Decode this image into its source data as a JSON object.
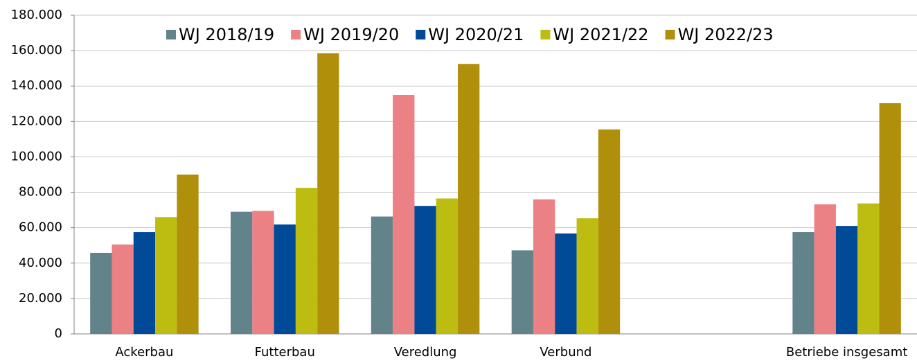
{
  "chart_data": {
    "type": "bar",
    "categories": [
      "Ackerbau",
      "Futterbau",
      "Veredlung",
      "Verbund",
      null,
      "Betriebe insgesamt"
    ],
    "series": [
      {
        "name": "WJ 2018/19",
        "color": "#62838a",
        "values": [
          45800,
          69000,
          66300,
          47200,
          null,
          57500
        ]
      },
      {
        "name": "WJ 2019/20",
        "color": "#eb8085",
        "values": [
          50500,
          69500,
          135000,
          76000,
          null,
          73200
        ]
      },
      {
        "name": "WJ 2020/21",
        "color": "#004a97",
        "values": [
          57500,
          61800,
          72300,
          56700,
          null,
          61000
        ]
      },
      {
        "name": "WJ 2021/22",
        "color": "#bcbd10",
        "values": [
          66000,
          82500,
          76500,
          65300,
          null,
          73700
        ]
      },
      {
        "name": "WJ 2022/23",
        "color": "#b08f0b",
        "values": [
          90000,
          158500,
          152500,
          115500,
          null,
          130300
        ]
      }
    ],
    "ylim": [
      0,
      180000
    ],
    "yticks": [
      {
        "value": 0,
        "label": "0"
      },
      {
        "value": 20000,
        "label": "20.000"
      },
      {
        "value": 40000,
        "label": "40.000"
      },
      {
        "value": 60000,
        "label": "60.000"
      },
      {
        "value": 80000,
        "label": "80.000"
      },
      {
        "value": 100000,
        "label": "100.000"
      },
      {
        "value": 120000,
        "label": "120.000"
      },
      {
        "value": 140000,
        "label": "140.000"
      },
      {
        "value": 160000,
        "label": "160.000"
      },
      {
        "value": 180000,
        "label": "180.000"
      }
    ],
    "grid": true,
    "legend": "top"
  }
}
